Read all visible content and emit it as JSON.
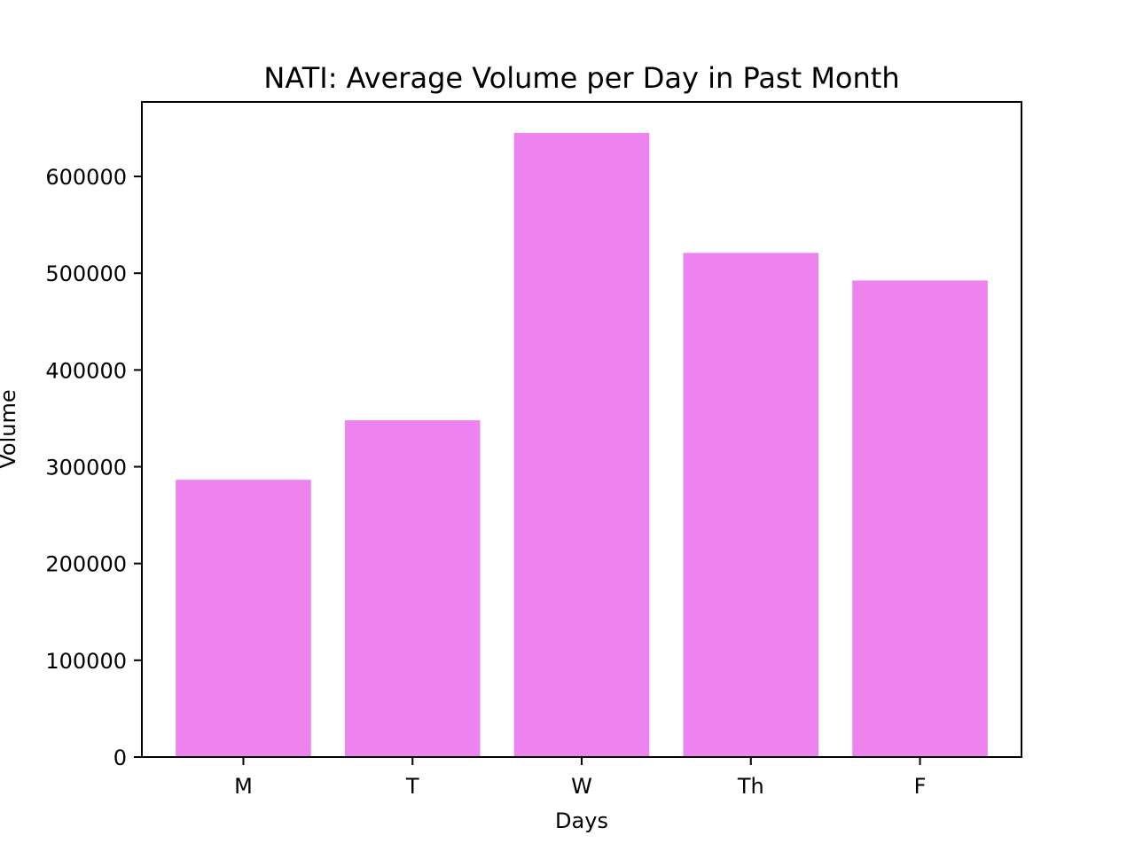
{
  "chart_data": {
    "type": "bar",
    "title": "NATI: Average Volume per Day in Past Month",
    "xlabel": "Days",
    "ylabel": "Volume",
    "categories": [
      "M",
      "T",
      "W",
      "Th",
      "F"
    ],
    "values": [
      286500,
      348000,
      645000,
      521000,
      492500
    ],
    "ylim": [
      0,
      677000
    ],
    "yticks": [
      0,
      100000,
      200000,
      300000,
      400000,
      500000,
      600000
    ],
    "ytick_labels": [
      "0",
      "100000",
      "200000",
      "300000",
      "400000",
      "500000",
      "600000"
    ],
    "bar_color": "#ee82ee",
    "grid": false,
    "legend": "none"
  }
}
